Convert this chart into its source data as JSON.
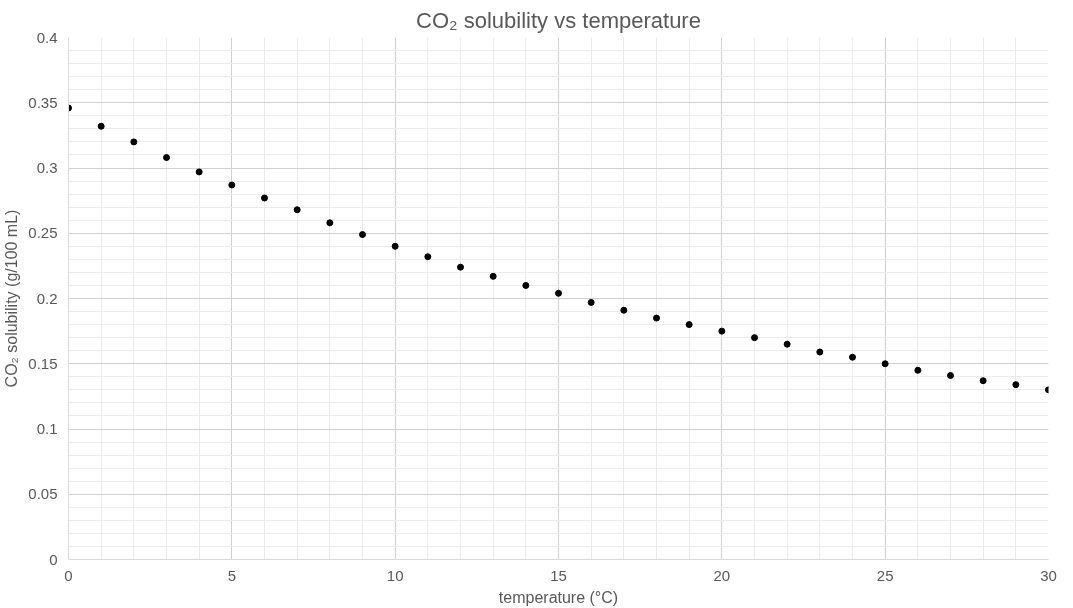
{
  "chart_data": {
    "type": "scatter",
    "title": "CO₂ solubility vs temperature",
    "xlabel": "temperature (°C)",
    "ylabel": "CO₂ solubility (g/100 mL)",
    "x": [
      0,
      1,
      2,
      3,
      4,
      5,
      6,
      7,
      8,
      9,
      10,
      11,
      12,
      13,
      14,
      15,
      16,
      17,
      18,
      19,
      20,
      21,
      22,
      23,
      24,
      25,
      26,
      27,
      28,
      29,
      30
    ],
    "series": [
      {
        "color": "#000000",
        "values": [
          0.346,
          0.332,
          0.32,
          0.308,
          0.297,
          0.287,
          0.277,
          0.268,
          0.258,
          0.249,
          0.24,
          0.232,
          0.224,
          0.217,
          0.21,
          0.204,
          0.197,
          0.191,
          0.185,
          0.18,
          0.175,
          0.17,
          0.165,
          0.159,
          0.155,
          0.15,
          0.145,
          0.141,
          0.137,
          0.134,
          0.13
        ]
      }
    ],
    "xlim": [
      0,
      30
    ],
    "xticks": [
      0,
      5,
      10,
      15,
      20,
      25,
      30
    ],
    "ylim": [
      0,
      0.4
    ],
    "yticks": [
      0,
      0.05,
      0.1,
      0.15,
      0.2,
      0.25,
      0.3,
      0.35,
      0.4
    ],
    "grid": true,
    "marker": "circle"
  }
}
